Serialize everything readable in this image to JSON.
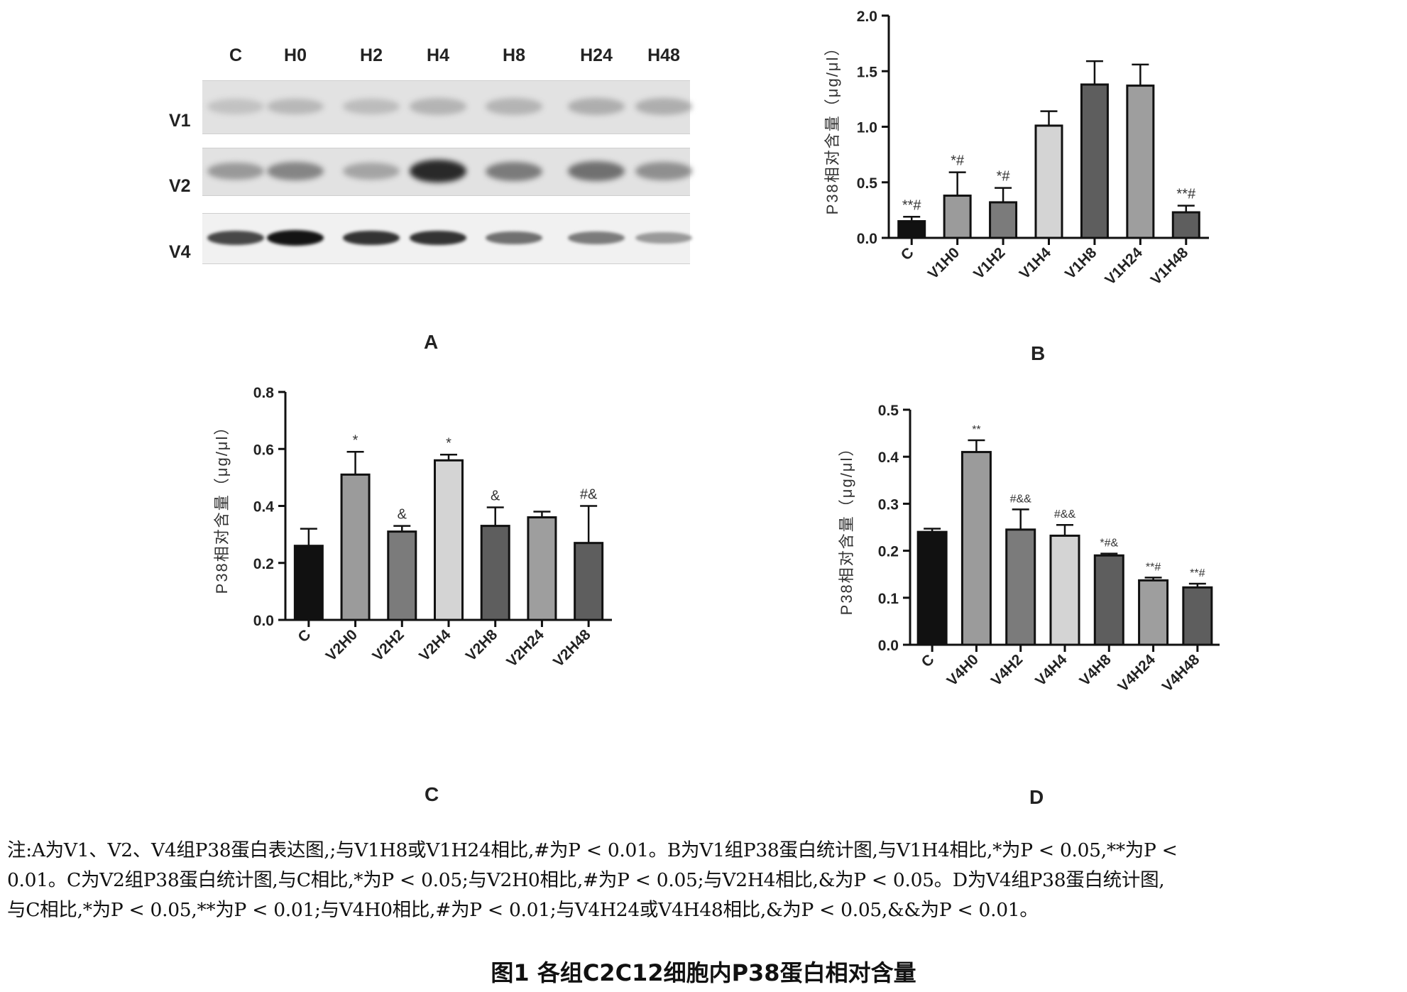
{
  "panel_a": {
    "lanes": [
      "C",
      "H0",
      "H2",
      "H4",
      "H8",
      "H24",
      "H48"
    ],
    "rows": [
      {
        "label": "V1",
        "bands": [
          0.15,
          0.2,
          0.18,
          0.22,
          0.22,
          0.25,
          0.25
        ]
      },
      {
        "label": "V2",
        "bands": [
          0.35,
          0.45,
          0.3,
          0.9,
          0.5,
          0.55,
          0.4
        ]
      },
      {
        "label": "V4",
        "bands": [
          0.75,
          1.0,
          0.85,
          0.85,
          0.55,
          0.5,
          0.35
        ]
      }
    ],
    "letter": "A"
  },
  "chart_data": [
    {
      "id": "B",
      "type": "bar",
      "letter": "B",
      "ylabel": "P38相对含量（μg/μl）",
      "ylim": [
        0,
        2.0
      ],
      "yticks": [
        "0.0",
        "0.5",
        "1.0",
        "1.5",
        "2.0"
      ],
      "categories": [
        "C",
        "V1H0",
        "V1H2",
        "V1H4",
        "V1H8",
        "V1H24",
        "V1H48"
      ],
      "values": [
        0.15,
        0.38,
        0.32,
        1.01,
        1.38,
        1.37,
        0.23
      ],
      "errors": [
        0.04,
        0.21,
        0.13,
        0.13,
        0.21,
        0.19,
        0.06
      ],
      "annotations": [
        "**#",
        "*#",
        "*#",
        "",
        "",
        "",
        "**#"
      ],
      "colors": [
        "#111111",
        "#9b9b9b",
        "#7b7b7b",
        "#d4d4d4",
        "#5e5e5e",
        "#9e9e9e",
        "#5e5e5e"
      ]
    },
    {
      "id": "C",
      "type": "bar",
      "letter": "C",
      "ylabel": "P38相对含量（μg/μl）",
      "ylim": [
        0,
        0.8
      ],
      "yticks": [
        "0.0",
        "0.2",
        "0.4",
        "0.6",
        "0.8"
      ],
      "categories": [
        "C",
        "V2H0",
        "V2H2",
        "V2H4",
        "V2H8",
        "V2H24",
        "V2H48"
      ],
      "values": [
        0.26,
        0.51,
        0.31,
        0.56,
        0.33,
        0.36,
        0.27
      ],
      "errors": [
        0.06,
        0.08,
        0.02,
        0.02,
        0.065,
        0.02,
        0.13
      ],
      "annotations": [
        "",
        "*",
        "&",
        "*",
        "&",
        "",
        "#&"
      ],
      "colors": [
        "#111111",
        "#9b9b9b",
        "#7b7b7b",
        "#d4d4d4",
        "#5e5e5e",
        "#9e9e9e",
        "#5e5e5e"
      ]
    },
    {
      "id": "D",
      "type": "bar",
      "letter": "D",
      "ylabel": "P38相对含量（μg/μl）",
      "ylim": [
        0,
        0.5
      ],
      "yticks": [
        "0.0",
        "0.1",
        "0.2",
        "0.3",
        "0.4",
        "0.5"
      ],
      "categories": [
        "C",
        "V4H0",
        "V4H2",
        "V4H4",
        "V4H8",
        "V4H24",
        "V4H48"
      ],
      "values": [
        0.24,
        0.41,
        0.245,
        0.232,
        0.19,
        0.137,
        0.122
      ],
      "errors": [
        0.007,
        0.025,
        0.043,
        0.023,
        0.004,
        0.006,
        0.008
      ],
      "annotations": [
        "",
        "**",
        "#&&",
        "#&&",
        "*#&",
        "**#",
        "**#"
      ],
      "colors": [
        "#111111",
        "#9b9b9b",
        "#7b7b7b",
        "#d4d4d4",
        "#5e5e5e",
        "#9e9e9e",
        "#5e5e5e"
      ]
    }
  ],
  "note_lines": [
    "注:A为V1、V2、V4组P38蛋白表达图,;与V1H8或V1H24相比,#为P < 0.01。B为V1组P38蛋白统计图,与V1H4相比,*为P < 0.05,**为P <",
    "0.01。C为V2组P38蛋白统计图,与C相比,*为P < 0.05;与V2H0相比,#为P < 0.05;与V2H4相比,&为P < 0.05。D为V4组P38蛋白统计图,",
    "与C相比,*为P < 0.05,**为P < 0.01;与V4H0相比,#为P < 0.01;与V4H24或V4H48相比,&为P < 0.05,&&为P < 0.01。"
  ],
  "caption": "图1  各组C2C12细胞内P38蛋白相对含量"
}
